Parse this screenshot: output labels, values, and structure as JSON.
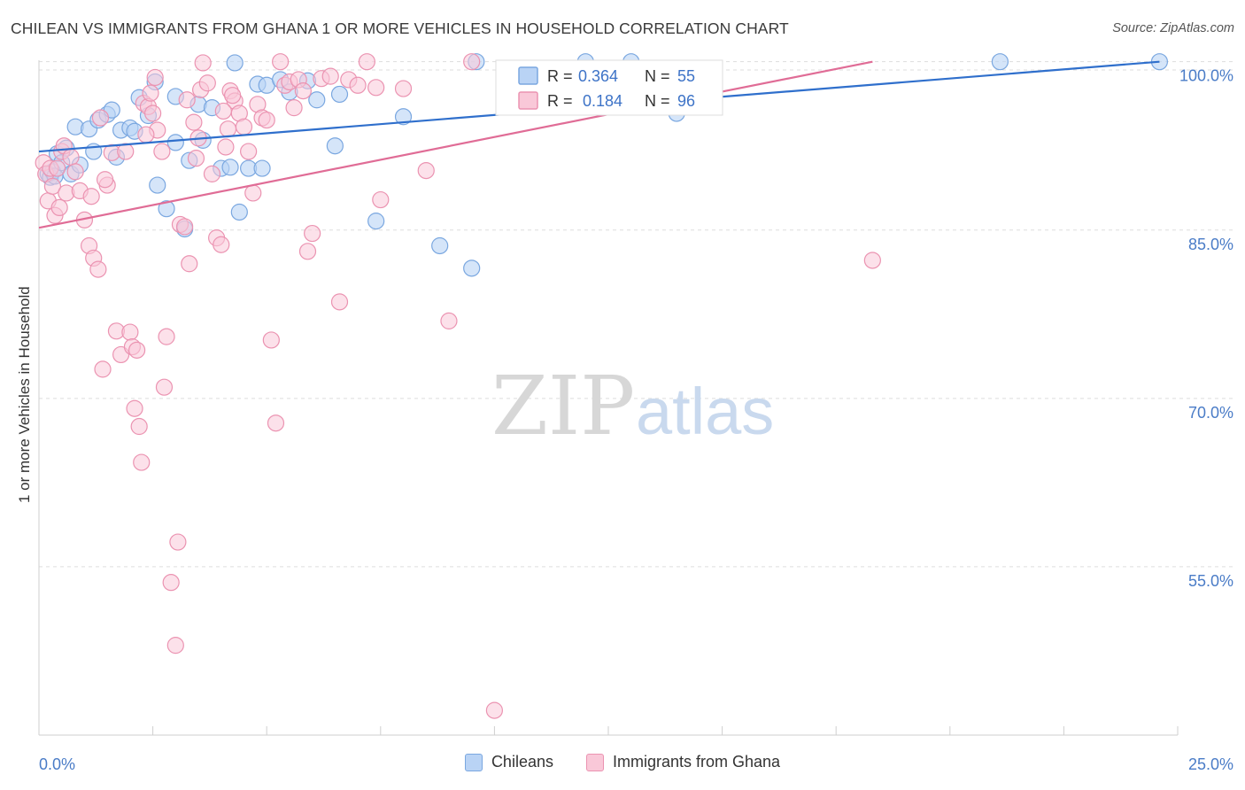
{
  "title": "CHILEAN VS IMMIGRANTS FROM GHANA 1 OR MORE VEHICLES IN HOUSEHOLD CORRELATION CHART",
  "source": "Source: ZipAtlas.com",
  "watermark": {
    "zip": "ZIP",
    "atlas": "atlas"
  },
  "colors": {
    "blue_fill": "#b9d3f5",
    "blue_stroke": "#7aa7e0",
    "blue_line": "#2f6fcc",
    "pink_fill": "#f9c8d8",
    "pink_stroke": "#eb93b1",
    "pink_line": "#e06c96",
    "axis_label": "#4a7cc7",
    "grid": "#dddddd"
  },
  "stats_box": {
    "blue": {
      "r_label": "R =",
      "r_value": "0.364",
      "n_label": "N =",
      "n_value": "55"
    },
    "pink": {
      "r_label": "R =",
      "r_value": "0.184",
      "n_label": "N =",
      "n_value": "96"
    }
  },
  "legend": {
    "series_a": "Chileans",
    "series_b": "Immigrants from Ghana"
  },
  "chart_data": {
    "type": "scatter",
    "xlabel": "",
    "ylabel": "1 or more Vehicles in Household",
    "xlim": [
      0,
      25
    ],
    "ylim": [
      40,
      101
    ],
    "x_tick_labels": [
      "0.0%",
      "25.0%"
    ],
    "y_ticks": [
      55,
      70,
      85,
      100
    ],
    "y_tick_labels": [
      "55.0%",
      "70.0%",
      "85.0%",
      "100.0%"
    ],
    "grid": true,
    "series": [
      {
        "name": "Chileans",
        "r": 0.364,
        "n": 55,
        "trend": [
          [
            0,
            92.0
          ],
          [
            24.6,
            100.0
          ]
        ],
        "points": [
          [
            0.2,
            90.0
          ],
          [
            0.25,
            89.7
          ],
          [
            0.3,
            90.2
          ],
          [
            0.35,
            89.8
          ],
          [
            0.4,
            91.8
          ],
          [
            0.5,
            91.0
          ],
          [
            0.6,
            92.3
          ],
          [
            0.7,
            90.0
          ],
          [
            0.8,
            94.2
          ],
          [
            0.9,
            90.8
          ],
          [
            1.1,
            94.0
          ],
          [
            1.2,
            92.0
          ],
          [
            1.3,
            94.8
          ],
          [
            1.5,
            95.3
          ],
          [
            1.6,
            95.7
          ],
          [
            1.7,
            91.5
          ],
          [
            1.8,
            93.9
          ],
          [
            2.0,
            94.1
          ],
          [
            2.1,
            93.8
          ],
          [
            2.2,
            96.8
          ],
          [
            2.4,
            95.2
          ],
          [
            2.55,
            98.2
          ],
          [
            2.6,
            89.0
          ],
          [
            2.8,
            86.9
          ],
          [
            3.0,
            92.8
          ],
          [
            3.0,
            96.9
          ],
          [
            3.2,
            85.1
          ],
          [
            3.3,
            91.2
          ],
          [
            3.5,
            96.2
          ],
          [
            3.6,
            93.0
          ],
          [
            3.8,
            95.9
          ],
          [
            4.0,
            90.5
          ],
          [
            4.2,
            90.6
          ],
          [
            4.3,
            99.9
          ],
          [
            4.4,
            86.6
          ],
          [
            4.6,
            90.5
          ],
          [
            4.8,
            98.0
          ],
          [
            4.9,
            90.5
          ],
          [
            5.0,
            97.9
          ],
          [
            5.3,
            98.4
          ],
          [
            5.5,
            97.3
          ],
          [
            5.9,
            98.3
          ],
          [
            6.1,
            96.6
          ],
          [
            6.5,
            92.5
          ],
          [
            6.6,
            97.1
          ],
          [
            7.4,
            85.8
          ],
          [
            8.0,
            95.1
          ],
          [
            8.8,
            83.6
          ],
          [
            9.5,
            81.6
          ],
          [
            9.6,
            100.0
          ],
          [
            12.0,
            100.0
          ],
          [
            13.0,
            100.0
          ],
          [
            14.0,
            95.4
          ],
          [
            21.1,
            100.0
          ],
          [
            24.6,
            100.0
          ]
        ]
      },
      {
        "name": "Immigrants from Ghana",
        "r": 0.184,
        "n": 96,
        "trend": [
          [
            0,
            85.2
          ],
          [
            18.3,
            100.0
          ]
        ],
        "points": [
          [
            0.1,
            91.0
          ],
          [
            0.15,
            90.0
          ],
          [
            0.2,
            87.6
          ],
          [
            0.25,
            90.5
          ],
          [
            0.3,
            88.9
          ],
          [
            0.35,
            86.3
          ],
          [
            0.4,
            90.5
          ],
          [
            0.5,
            92.0
          ],
          [
            0.55,
            92.5
          ],
          [
            0.6,
            88.3
          ],
          [
            0.7,
            91.5
          ],
          [
            0.8,
            90.2
          ],
          [
            0.9,
            88.5
          ],
          [
            1.0,
            85.9
          ],
          [
            1.1,
            83.6
          ],
          [
            1.2,
            82.5
          ],
          [
            1.3,
            81.5
          ],
          [
            1.4,
            72.6
          ],
          [
            1.5,
            89.0
          ],
          [
            1.6,
            91.9
          ],
          [
            1.7,
            76.0
          ],
          [
            1.8,
            73.9
          ],
          [
            1.9,
            92.0
          ],
          [
            2.0,
            75.9
          ],
          [
            2.05,
            74.6
          ],
          [
            2.1,
            69.1
          ],
          [
            2.2,
            67.5
          ],
          [
            2.25,
            64.3
          ],
          [
            2.3,
            96.3
          ],
          [
            2.4,
            96.0
          ],
          [
            2.5,
            95.4
          ],
          [
            2.6,
            93.9
          ],
          [
            2.7,
            92.0
          ],
          [
            2.75,
            71.0
          ],
          [
            2.8,
            75.5
          ],
          [
            2.9,
            53.6
          ],
          [
            3.0,
            48.0
          ],
          [
            3.05,
            57.2
          ],
          [
            3.1,
            85.5
          ],
          [
            3.2,
            85.3
          ],
          [
            3.3,
            82.0
          ],
          [
            3.4,
            94.6
          ],
          [
            3.5,
            93.2
          ],
          [
            3.55,
            97.5
          ],
          [
            3.6,
            99.9
          ],
          [
            3.7,
            98.1
          ],
          [
            3.8,
            90.0
          ],
          [
            3.9,
            84.3
          ],
          [
            4.0,
            83.7
          ],
          [
            4.1,
            92.4
          ],
          [
            4.2,
            97.4
          ],
          [
            4.3,
            96.5
          ],
          [
            4.4,
            95.4
          ],
          [
            4.5,
            94.2
          ],
          [
            4.6,
            92.0
          ],
          [
            4.7,
            88.3
          ],
          [
            4.8,
            96.2
          ],
          [
            4.9,
            95.0
          ],
          [
            5.0,
            94.8
          ],
          [
            5.1,
            75.2
          ],
          [
            5.2,
            67.8
          ],
          [
            5.3,
            100.0
          ],
          [
            5.4,
            97.9
          ],
          [
            5.5,
            98.2
          ],
          [
            5.6,
            95.9
          ],
          [
            5.7,
            98.4
          ],
          [
            5.8,
            97.4
          ],
          [
            5.9,
            83.1
          ],
          [
            6.0,
            84.7
          ],
          [
            6.2,
            98.5
          ],
          [
            6.4,
            98.7
          ],
          [
            6.6,
            78.6
          ],
          [
            6.8,
            98.4
          ],
          [
            7.0,
            97.9
          ],
          [
            7.2,
            100.0
          ],
          [
            7.4,
            97.7
          ],
          [
            7.5,
            87.7
          ],
          [
            8.0,
            97.6
          ],
          [
            8.5,
            90.3
          ],
          [
            9.0,
            76.9
          ],
          [
            9.5,
            100.0
          ],
          [
            10.0,
            42.2
          ],
          [
            18.3,
            82.3
          ],
          [
            1.15,
            88.0
          ],
          [
            1.35,
            95.0
          ],
          [
            2.35,
            93.5
          ],
          [
            2.45,
            97.2
          ],
          [
            3.25,
            96.6
          ],
          [
            3.45,
            91.4
          ],
          [
            4.05,
            95.6
          ],
          [
            4.15,
            94.0
          ],
          [
            4.25,
            97.0
          ],
          [
            0.45,
            87.0
          ],
          [
            1.45,
            89.5
          ],
          [
            2.15,
            74.3
          ],
          [
            2.55,
            98.6
          ]
        ]
      }
    ]
  }
}
